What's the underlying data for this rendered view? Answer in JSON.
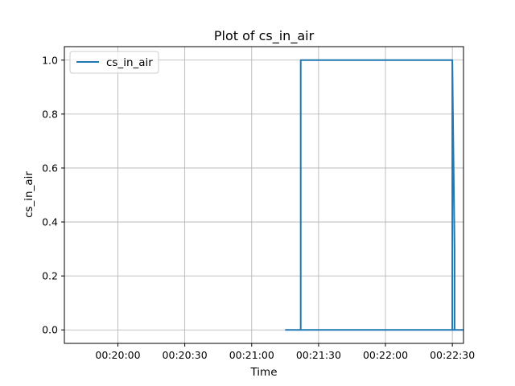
{
  "chart_data": {
    "type": "line",
    "title": "Plot of cs_in_air",
    "xlabel": "Time",
    "ylabel": "cs_in_air",
    "x_tick_labels": [
      "00:20:00",
      "00:20:30",
      "00:21:00",
      "00:21:30",
      "00:22:00",
      "00:22:30"
    ],
    "y_tick_labels": [
      "0.0",
      "0.2",
      "0.4",
      "0.6",
      "0.8",
      "1.0"
    ],
    "xlim": [
      "00:19:36",
      "00:22:35"
    ],
    "ylim": [
      -0.05,
      1.05
    ],
    "grid": true,
    "legend_position": "top-left",
    "series": [
      {
        "name": "cs_in_air",
        "color": "#1f77b4",
        "points": [
          [
            "00:21:15",
            0.0
          ],
          [
            "00:21:22",
            0.0
          ],
          [
            "00:21:22",
            0.3
          ],
          [
            "00:21:22",
            1.0
          ],
          [
            "00:22:30",
            1.0
          ],
          [
            "00:22:31",
            0.3
          ],
          [
            "00:22:31",
            0.0
          ],
          [
            "00:21:22",
            0.0
          ],
          [
            "00:21:22",
            0.45
          ],
          [
            "00:21:22",
            1.0
          ],
          [
            "00:22:30",
            1.0
          ],
          [
            "00:22:30",
            0.0
          ],
          [
            "00:22:35",
            0.0
          ]
        ]
      }
    ]
  }
}
